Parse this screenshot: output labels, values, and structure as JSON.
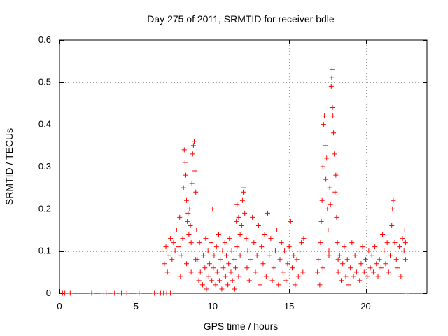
{
  "chart_data": {
    "type": "scatter",
    "title": "Day 275 of 2011, SRMTID for receiver bdle",
    "xlabel": "GPS time / hours",
    "ylabel": "SRMTID / TECUs",
    "xlim": [
      0,
      24
    ],
    "ylim": [
      0,
      0.6
    ],
    "xticks": [
      0,
      5,
      10,
      15,
      20
    ],
    "xtick_labels": [
      "0",
      "5",
      "10",
      "15",
      "20"
    ],
    "yticks": [
      0,
      0.1,
      0.2,
      0.3,
      0.4,
      0.5,
      0.6
    ],
    "ytick_labels": [
      "0",
      "0.1",
      "0.2",
      "0.3",
      "0.4",
      "0.5",
      "0.6"
    ],
    "grid": true,
    "marker": "+",
    "marker_color": "#ff0000",
    "series": [
      {
        "name": "SRMTID",
        "points": [
          [
            0.2,
            0
          ],
          [
            0.35,
            0
          ],
          [
            0.7,
            0
          ],
          [
            2.1,
            0
          ],
          [
            2.9,
            0
          ],
          [
            3.05,
            0
          ],
          [
            3.6,
            0
          ],
          [
            4.05,
            0
          ],
          [
            4.4,
            0
          ],
          [
            5.2,
            0
          ],
          [
            6.2,
            0
          ],
          [
            6.6,
            0
          ],
          [
            6.8,
            0
          ],
          [
            7.0,
            0
          ],
          [
            7.25,
            0
          ],
          [
            22.7,
            0
          ],
          [
            6.7,
            0.1
          ],
          [
            6.85,
            0.07
          ],
          [
            6.95,
            0.11
          ],
          [
            7.05,
            0.05
          ],
          [
            7.15,
            0.09
          ],
          [
            7.25,
            0.13
          ],
          [
            7.35,
            0.08
          ],
          [
            7.45,
            0.12
          ],
          [
            7.55,
            0.1
          ],
          [
            7.65,
            0.15
          ],
          [
            7.75,
            0.11
          ],
          [
            7.85,
            0.18
          ],
          [
            7.95,
            0.09
          ],
          [
            8.05,
            0.13
          ],
          [
            8.1,
            0.25
          ],
          [
            8.15,
            0.34
          ],
          [
            8.2,
            0.31
          ],
          [
            8.25,
            0.28
          ],
          [
            8.3,
            0.22
          ],
          [
            8.35,
            0.17
          ],
          [
            8.4,
            0.19
          ],
          [
            8.45,
            0.14
          ],
          [
            8.5,
            0.2
          ],
          [
            8.55,
            0.16
          ],
          [
            8.6,
            0.12
          ],
          [
            8.65,
            0.26
          ],
          [
            8.7,
            0.33
          ],
          [
            8.75,
            0.35
          ],
          [
            8.8,
            0.36
          ],
          [
            8.85,
            0.29
          ],
          [
            8.9,
            0.24
          ],
          [
            8.95,
            0.15
          ],
          [
            7.9,
            0.04
          ],
          [
            8.3,
            0.07
          ],
          [
            8.6,
            0.05
          ],
          [
            8.9,
            0.08
          ],
          [
            9.0,
            0.08
          ],
          [
            9.1,
            0.03
          ],
          [
            9.15,
            0.12
          ],
          [
            9.2,
            0.05
          ],
          [
            9.3,
            0.15
          ],
          [
            9.35,
            0.02
          ],
          [
            9.4,
            0.09
          ],
          [
            9.5,
            0.06
          ],
          [
            9.55,
            0.13
          ],
          [
            9.6,
            0.01
          ],
          [
            9.7,
            0.1
          ],
          [
            9.75,
            0.04
          ],
          [
            9.8,
            0.07
          ],
          [
            9.9,
            0.12
          ],
          [
            9.95,
            0.03
          ],
          [
            10.0,
            0.2
          ],
          [
            10.05,
            0.06
          ],
          [
            10.1,
            0.09
          ],
          [
            10.2,
            0.02
          ],
          [
            10.25,
            0.11
          ],
          [
            10.3,
            0.05
          ],
          [
            10.4,
            0.14
          ],
          [
            10.45,
            0.03
          ],
          [
            10.5,
            0.08
          ],
          [
            10.6,
            0.01
          ],
          [
            10.65,
            0.1
          ],
          [
            10.7,
            0.06
          ],
          [
            10.8,
            0.12
          ],
          [
            10.85,
            0.04
          ],
          [
            10.9,
            0.09
          ],
          [
            11.0,
            0.02
          ],
          [
            11.05,
            0.07
          ],
          [
            11.1,
            0.13
          ],
          [
            11.2,
            0.05
          ],
          [
            11.25,
            0.1
          ],
          [
            11.3,
            0.03
          ],
          [
            11.4,
            0.08
          ],
          [
            11.45,
            0.01
          ],
          [
            11.5,
            0.06
          ],
          [
            11.6,
            0.11
          ],
          [
            11.7,
            0.04
          ],
          [
            11.8,
            0.09
          ],
          [
            11.55,
            0.17
          ],
          [
            11.6,
            0.21
          ],
          [
            11.7,
            0.18
          ],
          [
            11.8,
            0.14
          ],
          [
            11.9,
            0.16
          ],
          [
            11.95,
            0.22
          ],
          [
            12.0,
            0.24
          ],
          [
            12.05,
            0.25
          ],
          [
            12.1,
            0.19
          ],
          [
            12.2,
            0.13
          ],
          [
            12.25,
            0.06
          ],
          [
            12.3,
            0.1
          ],
          [
            12.4,
            0.03
          ],
          [
            12.5,
            0.08
          ],
          [
            12.6,
            0.18
          ],
          [
            12.7,
            0.12
          ],
          [
            12.8,
            0.05
          ],
          [
            12.9,
            0.09
          ],
          [
            13.0,
            0.16
          ],
          [
            13.1,
            0.02
          ],
          [
            13.2,
            0.11
          ],
          [
            13.3,
            0.07
          ],
          [
            13.4,
            0.14
          ],
          [
            13.5,
            0.04
          ],
          [
            13.6,
            0.19
          ],
          [
            13.7,
            0.09
          ],
          [
            13.8,
            0.13
          ],
          [
            13.9,
            0.03
          ],
          [
            14.0,
            0.06
          ],
          [
            14.1,
            0.1
          ],
          [
            14.2,
            0.15
          ],
          [
            14.3,
            0.02
          ],
          [
            14.4,
            0.08
          ],
          [
            14.5,
            0.12
          ],
          [
            14.6,
            0.05
          ],
          [
            14.7,
            0.1
          ],
          [
            14.8,
            0.03
          ],
          [
            14.9,
            0.07
          ],
          [
            15.0,
            0.11
          ],
          [
            15.1,
            0.17
          ],
          [
            15.2,
            0.06
          ],
          [
            15.3,
            0.09
          ],
          [
            15.4,
            0.02
          ],
          [
            15.5,
            0.08
          ],
          [
            15.6,
            0.04
          ],
          [
            15.7,
            0.1
          ],
          [
            15.8,
            0.12
          ],
          [
            15.9,
            0.05
          ],
          [
            15.95,
            0.13
          ],
          [
            16.85,
            0.05
          ],
          [
            16.9,
            0.08
          ],
          [
            17.0,
            0.02
          ],
          [
            17.05,
            0.12
          ],
          [
            17.1,
            0.17
          ],
          [
            17.15,
            0.22
          ],
          [
            17.2,
            0.3
          ],
          [
            17.25,
            0.4
          ],
          [
            17.3,
            0.42
          ],
          [
            17.35,
            0.35
          ],
          [
            17.4,
            0.27
          ],
          [
            17.45,
            0.32
          ],
          [
            17.5,
            0.2
          ],
          [
            17.55,
            0.15
          ],
          [
            17.6,
            0.1
          ],
          [
            17.65,
            0.25
          ],
          [
            17.7,
            0.21
          ],
          [
            17.75,
            0.49
          ],
          [
            17.78,
            0.51
          ],
          [
            17.8,
            0.53
          ],
          [
            17.83,
            0.44
          ],
          [
            17.86,
            0.42
          ],
          [
            17.9,
            0.38
          ],
          [
            17.95,
            0.33
          ],
          [
            18.0,
            0.24
          ],
          [
            18.05,
            0.28
          ],
          [
            18.1,
            0.18
          ],
          [
            18.15,
            0.12
          ],
          [
            18.2,
            0.08
          ],
          [
            17.2,
            0.06
          ],
          [
            17.6,
            0.09
          ],
          [
            18.2,
            0.05
          ],
          [
            18.3,
            0.09
          ],
          [
            18.4,
            0.03
          ],
          [
            18.5,
            0.07
          ],
          [
            18.6,
            0.11
          ],
          [
            18.7,
            0.04
          ],
          [
            18.8,
            0.08
          ],
          [
            18.9,
            0.02
          ],
          [
            19.0,
            0.06
          ],
          [
            19.1,
            0.12
          ],
          [
            19.2,
            0.04
          ],
          [
            19.3,
            0.09
          ],
          [
            19.4,
            0.05
          ],
          [
            19.5,
            0.1
          ],
          [
            19.6,
            0.03
          ],
          [
            19.7,
            0.07
          ],
          [
            19.8,
            0.11
          ],
          [
            19.9,
            0.05
          ],
          [
            20.0,
            0.08
          ],
          [
            20.1,
            0.04
          ],
          [
            20.2,
            0.1
          ],
          [
            20.3,
            0.06
          ],
          [
            20.4,
            0.09
          ],
          [
            20.5,
            0.05
          ],
          [
            20.6,
            0.11
          ],
          [
            20.7,
            0.07
          ],
          [
            20.8,
            0.04
          ],
          [
            20.9,
            0.08
          ],
          [
            21.0,
            0.06
          ],
          [
            21.1,
            0.14
          ],
          [
            21.2,
            0.1
          ],
          [
            21.3,
            0.07
          ],
          [
            21.4,
            0.12
          ],
          [
            21.5,
            0.05
          ],
          [
            21.6,
            0.09
          ],
          [
            21.7,
            0.16
          ],
          [
            21.75,
            0.2
          ],
          [
            21.8,
            0.22
          ],
          [
            21.9,
            0.12
          ],
          [
            22.0,
            0.08
          ],
          [
            22.1,
            0.06
          ],
          [
            22.2,
            0.11
          ],
          [
            22.3,
            0.04
          ],
          [
            22.4,
            0.13
          ],
          [
            22.5,
            0.1
          ],
          [
            22.55,
            0.15
          ],
          [
            22.6,
            0.12
          ],
          [
            22.6,
            0.08
          ]
        ]
      }
    ]
  }
}
